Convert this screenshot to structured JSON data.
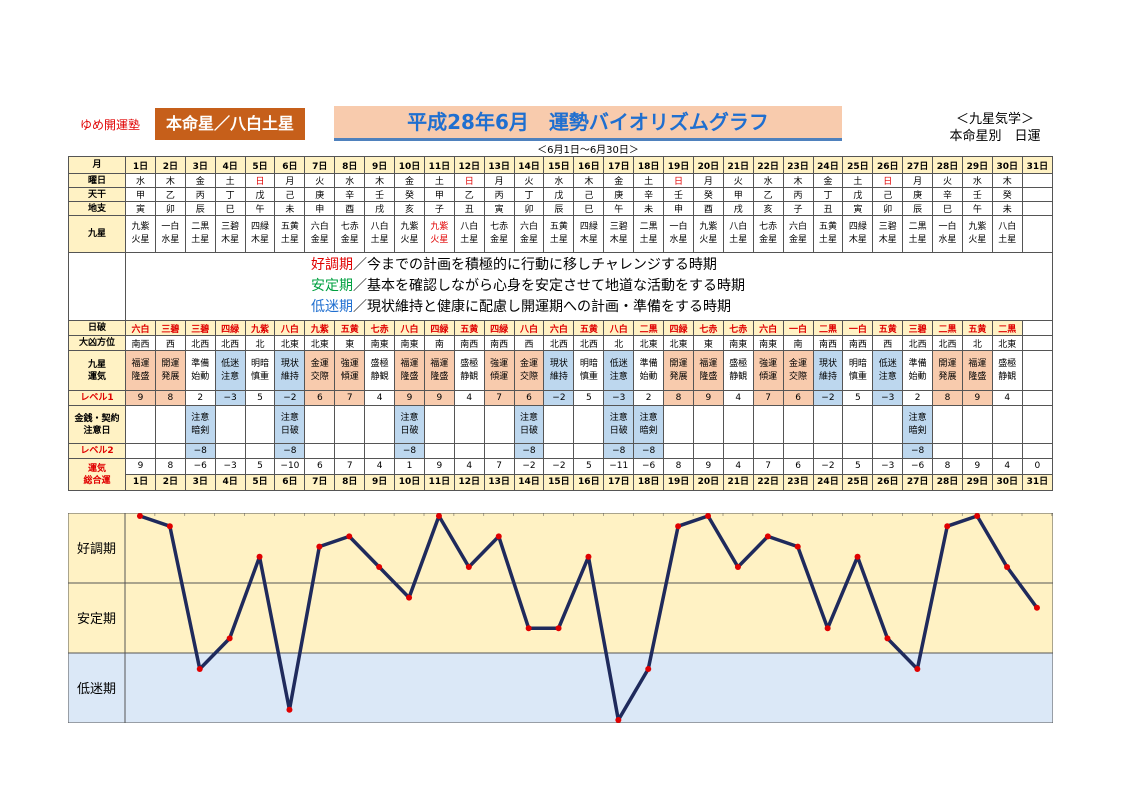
{
  "header": {
    "school": "ゆめ開運塾",
    "honmei": "本命星／八白土星",
    "title": "平成28年6月　運勢バイオリズムグラフ",
    "subtitle": "＜6月1日～6月30日＞",
    "kyusei_top": "＜九星気学＞",
    "kyusei_bottom": "本命星別　日運"
  },
  "labels": {
    "month": "月",
    "weekday": "曜日",
    "tenkan": "天干",
    "chishi": "地支",
    "kyusei": "九星",
    "hasai": "日破",
    "daikyo": "大凶方位",
    "unki": "九星\n運気",
    "level1": "レベル1",
    "kinsen": "金銭・契約\n注意日",
    "level2": "レベル2",
    "sogo": "運気\n総合運",
    "zone_good": "好調期",
    "zone_stable": "安定期",
    "zone_low": "低迷期"
  },
  "legend": [
    {
      "term": "好調期",
      "text": "／今までの計画を積極的に行動に移しチャレンジする時期"
    },
    {
      "term": "安定期",
      "text": "／基本を確認しながら心身を安定させて地道な活動をする時期"
    },
    {
      "term": "低迷期",
      "text": "／現状維持と健康に配慮し開運期への計画・準備をする時期"
    }
  ],
  "days": [
    "1日",
    "2日",
    "3日",
    "4日",
    "5日",
    "6日",
    "7日",
    "8日",
    "9日",
    "10日",
    "11日",
    "12日",
    "13日",
    "14日",
    "15日",
    "16日",
    "17日",
    "18日",
    "19日",
    "20日",
    "21日",
    "22日",
    "23日",
    "24日",
    "25日",
    "26日",
    "27日",
    "28日",
    "29日",
    "30日",
    "31日"
  ],
  "weekdays": [
    "水",
    "木",
    "金",
    "土",
    "日",
    "月",
    "火",
    "水",
    "木",
    "金",
    "土",
    "日",
    "月",
    "火",
    "水",
    "木",
    "金",
    "土",
    "日",
    "月",
    "火",
    "水",
    "木",
    "金",
    "土",
    "日",
    "月",
    "火",
    "水",
    "木",
    ""
  ],
  "tenkan": [
    "甲",
    "乙",
    "丙",
    "丁",
    "戊",
    "己",
    "庚",
    "辛",
    "壬",
    "癸",
    "甲",
    "乙",
    "丙",
    "丁",
    "戊",
    "己",
    "庚",
    "辛",
    "壬",
    "癸",
    "甲",
    "乙",
    "丙",
    "丁",
    "戊",
    "己",
    "庚",
    "辛",
    "壬",
    "癸",
    ""
  ],
  "chishi": [
    "寅",
    "卯",
    "辰",
    "巳",
    "午",
    "未",
    "申",
    "酉",
    "戌",
    "亥",
    "子",
    "丑",
    "寅",
    "卯",
    "辰",
    "巳",
    "午",
    "未",
    "申",
    "酉",
    "戌",
    "亥",
    "子",
    "丑",
    "寅",
    "卯",
    "辰",
    "巳",
    "午",
    "未",
    ""
  ],
  "kyusei": [
    [
      "九紫",
      "火星"
    ],
    [
      "一白",
      "水星"
    ],
    [
      "二黒",
      "土星"
    ],
    [
      "三碧",
      "木星"
    ],
    [
      "四緑",
      "木星"
    ],
    [
      "五黄",
      "土星"
    ],
    [
      "六白",
      "金星"
    ],
    [
      "七赤",
      "金星"
    ],
    [
      "八白",
      "土星"
    ],
    [
      "九紫",
      "火星"
    ],
    [
      "九紫",
      "火星"
    ],
    [
      "八白",
      "土星"
    ],
    [
      "七赤",
      "金星"
    ],
    [
      "六白",
      "金星"
    ],
    [
      "五黄",
      "土星"
    ],
    [
      "四緑",
      "木星"
    ],
    [
      "三碧",
      "木星"
    ],
    [
      "二黒",
      "土星"
    ],
    [
      "一白",
      "水星"
    ],
    [
      "九紫",
      "火星"
    ],
    [
      "八白",
      "土星"
    ],
    [
      "七赤",
      "金星"
    ],
    [
      "六白",
      "金星"
    ],
    [
      "五黄",
      "土星"
    ],
    [
      "四緑",
      "木星"
    ],
    [
      "三碧",
      "木星"
    ],
    [
      "二黒",
      "土星"
    ],
    [
      "一白",
      "水星"
    ],
    [
      "九紫",
      "火星"
    ],
    [
      "八白",
      "土星"
    ],
    [
      "",
      ""
    ]
  ],
  "hasai": [
    "六白",
    "三碧",
    "三碧",
    "四緑",
    "九紫",
    "八白",
    "九紫",
    "五黄",
    "七赤",
    "八白",
    "四緑",
    "五黄",
    "四緑",
    "八白",
    "六白",
    "五黄",
    "八白",
    "二黒",
    "四緑",
    "七赤",
    "七赤",
    "六白",
    "一白",
    "二黒",
    "一白",
    "五黄",
    "三碧",
    "二黒",
    "五黄",
    "二黒",
    ""
  ],
  "daikyo": [
    "南西",
    "西",
    "北西",
    "北西",
    "北",
    "北東",
    "北東",
    "東",
    "南東",
    "南東",
    "南",
    "南西",
    "南西",
    "西",
    "北西",
    "北西",
    "北",
    "北東",
    "北東",
    "東",
    "南東",
    "南東",
    "南",
    "南西",
    "南西",
    "西",
    "北西",
    "北西",
    "北",
    "北東",
    ""
  ],
  "unki": [
    [
      "福運",
      "隆盛"
    ],
    [
      "開運",
      "発展"
    ],
    [
      "準備",
      "始動"
    ],
    [
      "低迷",
      "注意"
    ],
    [
      "明暗",
      "慎重"
    ],
    [
      "現状",
      "維持"
    ],
    [
      "金運",
      "交際"
    ],
    [
      "強運",
      "傾運"
    ],
    [
      "盛極",
      "静観"
    ],
    [
      "福運",
      "隆盛"
    ],
    [
      "福運",
      "隆盛"
    ],
    [
      "盛極",
      "静観"
    ],
    [
      "強運",
      "傾運"
    ],
    [
      "金運",
      "交際"
    ],
    [
      "現状",
      "維持"
    ],
    [
      "明暗",
      "慎重"
    ],
    [
      "低迷",
      "注意"
    ],
    [
      "準備",
      "始動"
    ],
    [
      "開運",
      "発展"
    ],
    [
      "福運",
      "隆盛"
    ],
    [
      "盛極",
      "静観"
    ],
    [
      "強運",
      "傾運"
    ],
    [
      "金運",
      "交際"
    ],
    [
      "現状",
      "維持"
    ],
    [
      "明暗",
      "慎重"
    ],
    [
      "低迷",
      "注意"
    ],
    [
      "準備",
      "始動"
    ],
    [
      "開運",
      "発展"
    ],
    [
      "福運",
      "隆盛"
    ],
    [
      "盛極",
      "静観"
    ],
    [
      "",
      ""
    ]
  ],
  "level1": [
    "9",
    "8",
    "2",
    "−3",
    "5",
    "−2",
    "6",
    "7",
    "4",
    "9",
    "9",
    "4",
    "7",
    "6",
    "−2",
    "5",
    "−3",
    "2",
    "8",
    "9",
    "4",
    "7",
    "6",
    "−2",
    "5",
    "−3",
    "2",
    "8",
    "9",
    "4",
    ""
  ],
  "kinsen": [
    [
      "",
      ""
    ],
    [
      "",
      ""
    ],
    [
      "注意",
      "暗剣"
    ],
    [
      "",
      ""
    ],
    [
      "",
      ""
    ],
    [
      "注意",
      "日破"
    ],
    [
      "",
      ""
    ],
    [
      "",
      ""
    ],
    [
      "",
      ""
    ],
    [
      "注意",
      "日破"
    ],
    [
      "",
      ""
    ],
    [
      "",
      ""
    ],
    [
      "",
      ""
    ],
    [
      "注意",
      "日破"
    ],
    [
      "",
      ""
    ],
    [
      "",
      ""
    ],
    [
      "注意",
      "日破"
    ],
    [
      "注意",
      "暗剣"
    ],
    [
      "",
      ""
    ],
    [
      "",
      ""
    ],
    [
      "",
      ""
    ],
    [
      "",
      ""
    ],
    [
      "",
      ""
    ],
    [
      "",
      ""
    ],
    [
      "",
      ""
    ],
    [
      "",
      ""
    ],
    [
      "注意",
      "暗剣"
    ],
    [
      "",
      ""
    ],
    [
      "",
      ""
    ],
    [
      "",
      ""
    ],
    [
      "",
      ""
    ]
  ],
  "level2": [
    "",
    "",
    "−8",
    "",
    "",
    "−8",
    "",
    "",
    "",
    "−8",
    "",
    "",
    "",
    "−8",
    "",
    "",
    "−8",
    "−8",
    "",
    "",
    "",
    "",
    "",
    "",
    "",
    "",
    "−8",
    "",
    "",
    "",
    ""
  ],
  "sogo": [
    "9",
    "8",
    "−6",
    "−3",
    "5",
    "−10",
    "6",
    "7",
    "4",
    "1",
    "9",
    "4",
    "7",
    "−2",
    "−2",
    "5",
    "−11",
    "−6",
    "8",
    "9",
    "4",
    "7",
    "6",
    "−2",
    "5",
    "−3",
    "−6",
    "8",
    "9",
    "4",
    "0"
  ],
  "colors": {
    "line": "#1f2a5c",
    "marker": "#e00000",
    "zone": "#fff2c4",
    "zone_low": "#dbe8f7",
    "grid": "#555555"
  },
  "chart_data": {
    "type": "line",
    "categories": [
      "1日",
      "2日",
      "3日",
      "4日",
      "5日",
      "6日",
      "7日",
      "8日",
      "9日",
      "10日",
      "11日",
      "12日",
      "13日",
      "14日",
      "15日",
      "16日",
      "17日",
      "18日",
      "19日",
      "20日",
      "21日",
      "22日",
      "23日",
      "24日",
      "25日",
      "26日",
      "27日",
      "28日",
      "29日",
      "30日",
      "31日"
    ],
    "values": [
      9,
      8,
      -6,
      -3,
      5,
      -10,
      6,
      7,
      4,
      1,
      9,
      4,
      7,
      -2,
      -2,
      5,
      -11,
      -6,
      8,
      9,
      4,
      7,
      6,
      -2,
      5,
      -3,
      -6,
      8,
      9,
      4,
      0
    ],
    "ylim": [
      -11,
      9
    ],
    "bands": [
      "好調期",
      "安定期",
      "低迷期"
    ],
    "grid": true
  }
}
